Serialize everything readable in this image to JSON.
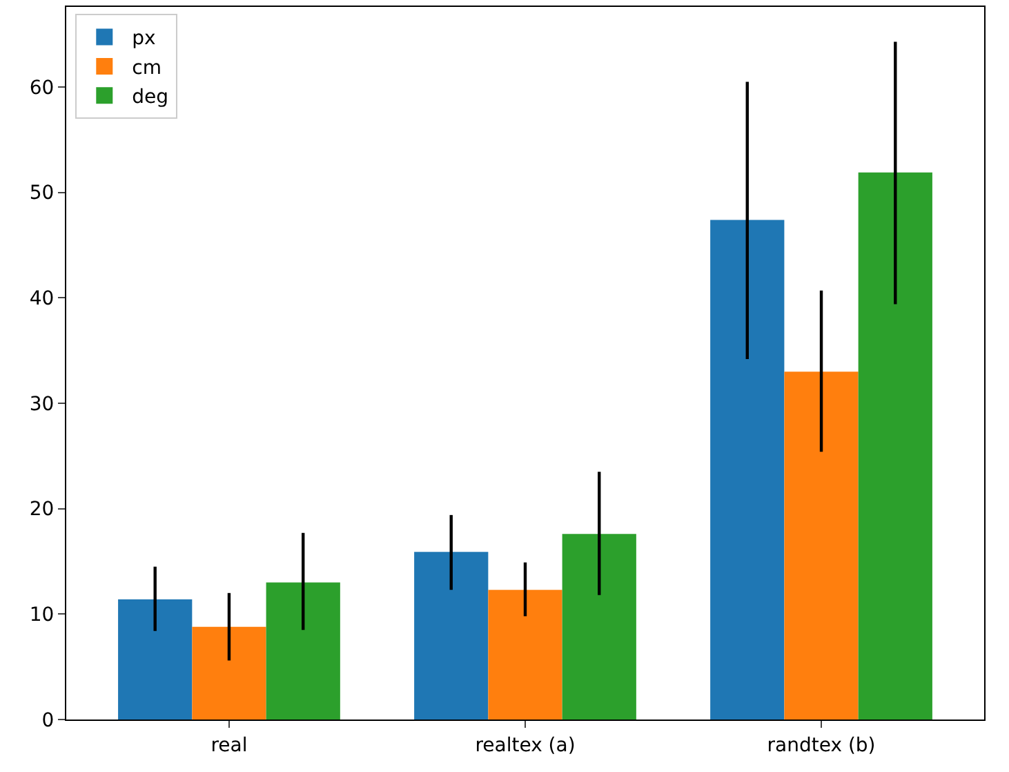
{
  "chart_data": {
    "type": "bar",
    "categories": [
      "real",
      "realtex (a)",
      "randtex (b)"
    ],
    "series": [
      {
        "name": "px",
        "color": "#1f77b4",
        "values": [
          11.4,
          15.9,
          47.4
        ],
        "errors": [
          [
            8.4,
            14.5
          ],
          [
            12.3,
            19.4
          ],
          [
            34.2,
            60.5
          ]
        ]
      },
      {
        "name": "cm",
        "color": "#ff7f0e",
        "values": [
          8.8,
          12.3,
          33.0
        ],
        "errors": [
          [
            5.6,
            12.0
          ],
          [
            9.8,
            14.9
          ],
          [
            25.4,
            40.7
          ]
        ]
      },
      {
        "name": "deg",
        "color": "#2ca02c",
        "values": [
          13.0,
          17.6,
          51.9
        ],
        "errors": [
          [
            8.5,
            17.7
          ],
          [
            11.8,
            23.5
          ],
          [
            39.4,
            64.3
          ]
        ]
      }
    ],
    "ylim": [
      0,
      67.6
    ],
    "yticks": [
      0,
      10,
      20,
      30,
      40,
      50,
      60
    ],
    "legend": "top left"
  }
}
